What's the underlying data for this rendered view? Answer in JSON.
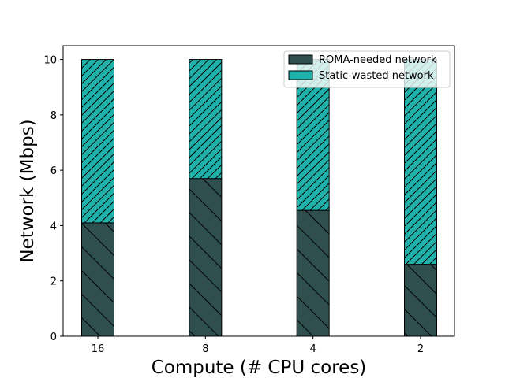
{
  "chart_data": {
    "type": "bar",
    "stacked": true,
    "title": "",
    "xlabel": "Compute (# CPU cores)",
    "ylabel": "Network (Mbps)",
    "categories": [
      "16",
      "8",
      "4",
      "2"
    ],
    "ylim": [
      0,
      10.5
    ],
    "yticks": [
      "0",
      "2",
      "4",
      "6",
      "8",
      "10"
    ],
    "legend_position": "top-right",
    "series": [
      {
        "name": "ROMA-needed network",
        "values": [
          4.1,
          5.7,
          4.55,
          2.6
        ],
        "color": "#2f4f4f",
        "hatch": "backslash"
      },
      {
        "name": "Static-wasted network",
        "values": [
          5.9,
          4.3,
          5.45,
          7.4
        ],
        "color": "#20b2aa",
        "hatch": "slash"
      }
    ]
  }
}
